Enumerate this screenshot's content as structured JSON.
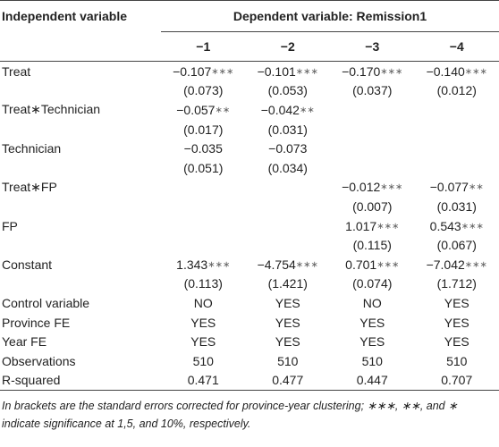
{
  "header": {
    "first": "Independent variable",
    "span": "Dependent variable: Remission1",
    "columns": [
      "−1",
      "−2",
      "−3",
      "−4"
    ]
  },
  "coef_rows": [
    {
      "label": "Treat",
      "est": [
        {
          "value": "−0.107",
          "stars": "∗∗∗"
        },
        {
          "value": "−0.101",
          "stars": "∗∗∗"
        },
        {
          "value": "−0.170",
          "stars": "∗∗∗"
        },
        {
          "value": "−0.140",
          "stars": "∗∗∗"
        }
      ],
      "se": [
        "(0.073)",
        "(0.053)",
        "(0.037)",
        "(0.012)"
      ]
    },
    {
      "label": "Treat∗Technician",
      "est": [
        {
          "value": "−0.057",
          "stars": "∗∗"
        },
        {
          "value": "−0.042",
          "stars": "∗∗"
        },
        null,
        null
      ],
      "se": [
        "(0.017)",
        "(0.031)",
        null,
        null
      ]
    },
    {
      "label": "Technician",
      "est": [
        {
          "value": "−0.035"
        },
        {
          "value": "−0.073"
        },
        null,
        null
      ],
      "se": [
        "(0.051)",
        "(0.034)",
        null,
        null
      ]
    },
    {
      "label": "Treat∗FP",
      "est": [
        null,
        null,
        {
          "value": "−0.012",
          "stars": "∗∗∗"
        },
        {
          "value": "−0.077",
          "stars": "∗∗"
        }
      ],
      "se": [
        null,
        null,
        "(0.007)",
        "(0.031)"
      ]
    },
    {
      "label": "FP",
      "est": [
        null,
        null,
        {
          "value": "1.017",
          "stars": "∗∗∗"
        },
        {
          "value": "0.543",
          "stars": "∗∗∗"
        }
      ],
      "se": [
        null,
        null,
        "(0.115)",
        "(0.067)"
      ]
    },
    {
      "label": "Constant",
      "est": [
        {
          "value": "1.343",
          "stars": "∗∗∗"
        },
        {
          "value": "−4.754",
          "stars": "∗∗∗"
        },
        {
          "value": "0.701",
          "stars": "∗∗∗"
        },
        {
          "value": "−7.042",
          "stars": "∗∗∗"
        }
      ],
      "se": [
        "(0.113)",
        "(1.421)",
        "(0.074)",
        "(1.712)"
      ]
    }
  ],
  "info_rows": [
    {
      "label": "Control variable",
      "values": [
        "NO",
        "YES",
        "NO",
        "YES"
      ]
    },
    {
      "label": "Province FE",
      "values": [
        "YES",
        "YES",
        "YES",
        "YES"
      ]
    },
    {
      "label": "Year FE",
      "values": [
        "YES",
        "YES",
        "YES",
        "YES"
      ]
    },
    {
      "label": "Observations",
      "values": [
        "510",
        "510",
        "510",
        "510"
      ]
    },
    {
      "label": "R-squared",
      "values": [
        "0.471",
        "0.477",
        "0.447",
        "0.707"
      ]
    }
  ],
  "footnote": "In brackets are the standard errors corrected for province-year clustering; ∗∗∗, ∗∗, and ∗ indicate significance at 1,5, and 10%, respectively."
}
